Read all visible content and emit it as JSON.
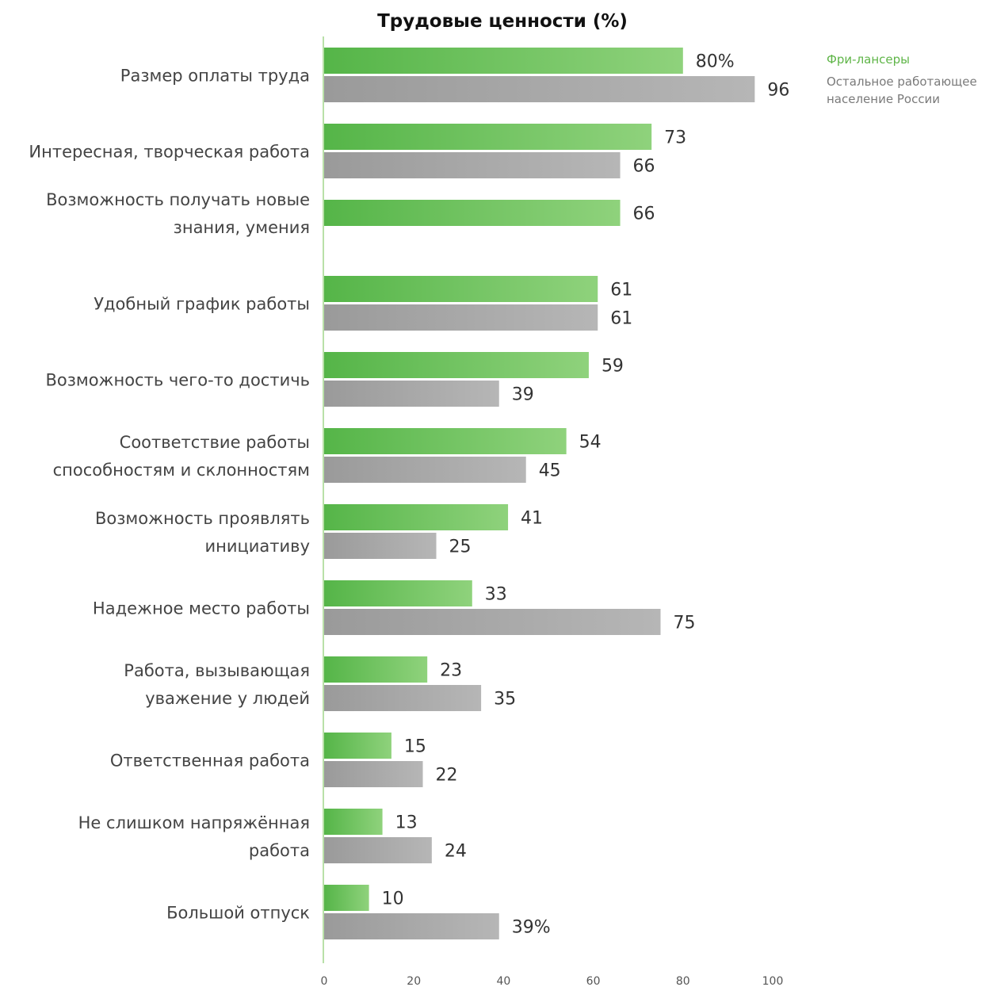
{
  "chart_data": {
    "type": "bar",
    "orientation": "horizontal",
    "title": "Трудовые ценности (%)",
    "categories": [
      [
        "Размер оплаты труда"
      ],
      [
        "Интересная, творческая работа"
      ],
      [
        "Возможность получать новые",
        "знания, умения"
      ],
      [
        "Удобный график работы"
      ],
      [
        "Возможность чего-то достичь"
      ],
      [
        "Соответствие работы",
        "способностям и склонностям"
      ],
      [
        "Возможность проявлять",
        "инициативу"
      ],
      [
        "Надежное место работы"
      ],
      [
        "Работа, вызывающая",
        "уважение у людей"
      ],
      [
        "Ответственная работа"
      ],
      [
        "Не слишком напряжённая",
        "работа"
      ],
      [
        "Большой отпуск"
      ]
    ],
    "series": [
      {
        "name": "Фри-лансеры",
        "color": "#6cc35a",
        "values": [
          80,
          73,
          66,
          61,
          59,
          54,
          41,
          33,
          23,
          15,
          13,
          10
        ],
        "labels": [
          "80%",
          "73",
          "66",
          "61",
          "59",
          "54",
          "41",
          "33",
          "23",
          "15",
          "13",
          "10"
        ]
      },
      {
        "name": "Остальное работающее население России",
        "color": "#a6a6a6",
        "values": [
          96,
          66,
          null,
          61,
          39,
          45,
          25,
          75,
          35,
          22,
          24,
          39
        ],
        "labels": [
          "96",
          "66",
          "",
          "61",
          "39",
          "45",
          "25",
          "75",
          "35",
          "22",
          "24",
          "39%"
        ]
      }
    ],
    "xlim": [
      0,
      100
    ],
    "xticks": [
      "0",
      "20",
      "40",
      "60",
      "80",
      "100"
    ],
    "grid": false,
    "legend_position": "top-right"
  },
  "legend": {
    "freelancers": "Фри-лансеры",
    "rest": "Остальное работающее население России"
  }
}
